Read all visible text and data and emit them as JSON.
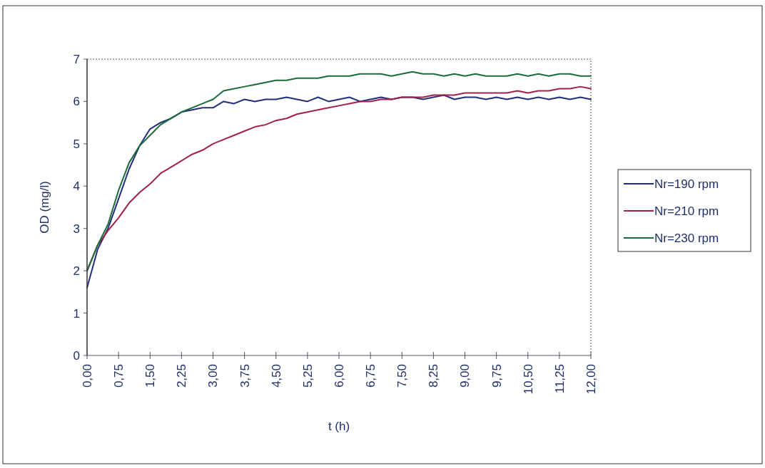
{
  "chart_data": {
    "type": "line",
    "xlabel": "t (h)",
    "ylabel": "OD (mg/l)",
    "x": [
      0,
      0.25,
      0.5,
      0.75,
      1,
      1.25,
      1.5,
      1.75,
      2,
      2.25,
      2.5,
      2.75,
      3,
      3.25,
      3.5,
      3.75,
      4,
      4.25,
      4.5,
      4.75,
      5,
      5.25,
      5.5,
      5.75,
      6,
      6.25,
      6.5,
      6.75,
      7,
      7.25,
      7.5,
      7.75,
      8,
      8.25,
      8.5,
      8.75,
      9,
      9.25,
      9.5,
      9.75,
      10,
      10.25,
      10.5,
      10.75,
      11,
      11.25,
      11.5,
      11.75,
      12
    ],
    "series": [
      {
        "name": "Nr=190 rpm",
        "color": "#1f2f7a",
        "values": [
          1.6,
          2.5,
          3.0,
          3.7,
          4.4,
          4.95,
          5.35,
          5.5,
          5.6,
          5.75,
          5.8,
          5.85,
          5.85,
          6.0,
          5.95,
          6.05,
          6.0,
          6.05,
          6.05,
          6.1,
          6.05,
          6.0,
          6.1,
          6.0,
          6.05,
          6.1,
          6.0,
          6.05,
          6.1,
          6.05,
          6.1,
          6.1,
          6.05,
          6.1,
          6.15,
          6.05,
          6.1,
          6.1,
          6.05,
          6.1,
          6.05,
          6.1,
          6.05,
          6.1,
          6.05,
          6.1,
          6.05,
          6.1,
          6.05
        ]
      },
      {
        "name": "Nr=210 rpm",
        "color": "#a0204a",
        "values": [
          2.0,
          2.6,
          2.95,
          3.25,
          3.6,
          3.85,
          4.05,
          4.3,
          4.45,
          4.6,
          4.75,
          4.85,
          5.0,
          5.1,
          5.2,
          5.3,
          5.4,
          5.45,
          5.55,
          5.6,
          5.7,
          5.75,
          5.8,
          5.85,
          5.9,
          5.95,
          6.0,
          6.0,
          6.05,
          6.05,
          6.1,
          6.1,
          6.1,
          6.15,
          6.15,
          6.15,
          6.2,
          6.2,
          6.2,
          6.2,
          6.2,
          6.25,
          6.2,
          6.25,
          6.25,
          6.3,
          6.3,
          6.35,
          6.3
        ]
      },
      {
        "name": "Nr=230 rpm",
        "color": "#1a6b3a",
        "values": [
          2.0,
          2.6,
          3.1,
          3.9,
          4.55,
          4.95,
          5.2,
          5.45,
          5.6,
          5.75,
          5.85,
          5.95,
          6.05,
          6.25,
          6.3,
          6.35,
          6.4,
          6.45,
          6.5,
          6.5,
          6.55,
          6.55,
          6.55,
          6.6,
          6.6,
          6.6,
          6.65,
          6.65,
          6.65,
          6.6,
          6.65,
          6.7,
          6.65,
          6.65,
          6.6,
          6.65,
          6.6,
          6.65,
          6.6,
          6.6,
          6.6,
          6.65,
          6.6,
          6.65,
          6.6,
          6.65,
          6.65,
          6.6,
          6.6
        ]
      }
    ],
    "xlim": [
      0,
      12
    ],
    "xticks": [
      {
        "value": 0,
        "label": "0,00"
      },
      {
        "value": 0.75,
        "label": "0,75"
      },
      {
        "value": 1.5,
        "label": "1,50"
      },
      {
        "value": 2.25,
        "label": "2,25"
      },
      {
        "value": 3,
        "label": "3,00"
      },
      {
        "value": 3.75,
        "label": "3,75"
      },
      {
        "value": 4.5,
        "label": "4,50"
      },
      {
        "value": 5.25,
        "label": "5,25"
      },
      {
        "value": 6,
        "label": "6,00"
      },
      {
        "value": 6.75,
        "label": "6,75"
      },
      {
        "value": 7.5,
        "label": "7,50"
      },
      {
        "value": 8.25,
        "label": "8,25"
      },
      {
        "value": 9,
        "label": "9,00"
      },
      {
        "value": 9.75,
        "label": "9,75"
      },
      {
        "value": 10.5,
        "label": "10,50"
      },
      {
        "value": 11.25,
        "label": "11,25"
      },
      {
        "value": 12,
        "label": "12,00"
      }
    ],
    "ylim": [
      0,
      7
    ],
    "yticks": [
      0,
      1,
      2,
      3,
      4,
      5,
      6,
      7
    ],
    "legend": "right",
    "grid": false,
    "marker": "none",
    "line_style": "solid"
  }
}
